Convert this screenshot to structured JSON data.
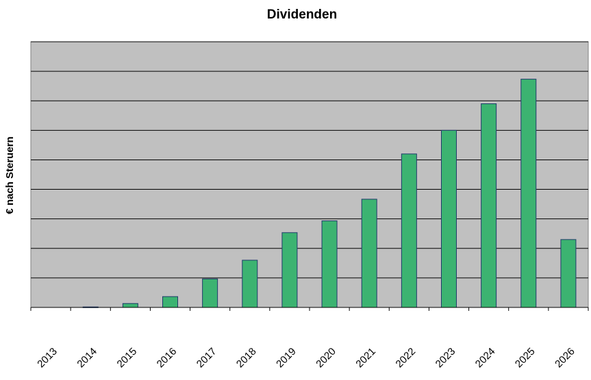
{
  "chart_data": {
    "type": "bar",
    "title": "Dividenden",
    "xlabel": "",
    "ylabel": "€ nach Steruern",
    "categories": [
      "2013",
      "2014",
      "2015",
      "2016",
      "2017",
      "2018",
      "2019",
      "2020",
      "2021",
      "2022",
      "2023",
      "2024",
      "2025",
      "2026"
    ],
    "values": [
      0,
      0.05,
      0.4,
      1.1,
      2.9,
      4.8,
      7.6,
      8.8,
      11.0,
      15.6,
      18.0,
      20.7,
      23.2,
      6.9
    ],
    "ylim": [
      0,
      27
    ],
    "y_gridlines": 9,
    "grid": true,
    "y_tick_labels_visible": false,
    "legend": "none",
    "colors": {
      "bar_fill": "#3CB371",
      "bar_stroke": "#1f3a6b",
      "plot_background": "#C0C0C0",
      "gridline": "#000000"
    }
  }
}
